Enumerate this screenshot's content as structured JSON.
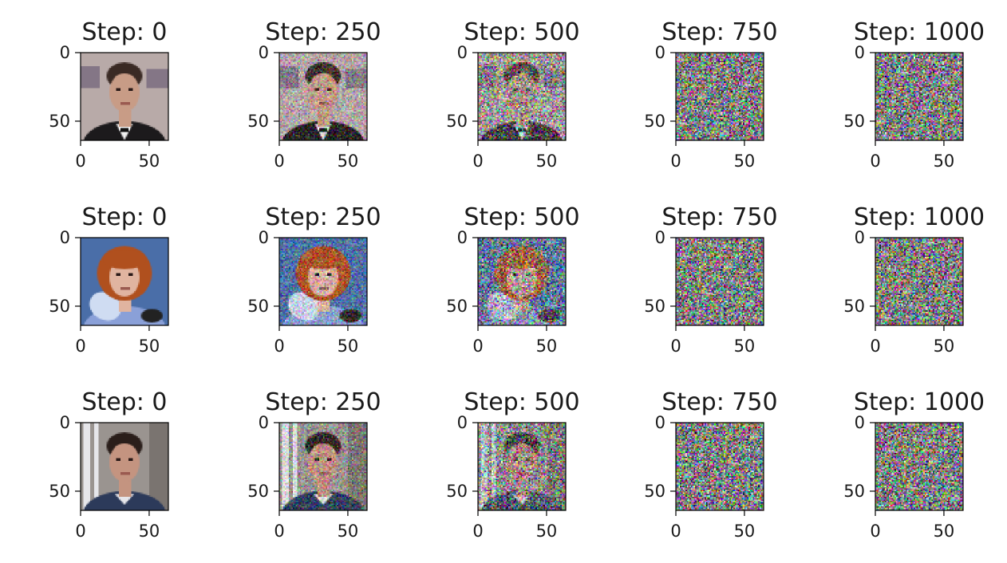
{
  "chart_data": {
    "type": "image_grid",
    "title": "",
    "rows": 3,
    "columns": 5,
    "panel_titles": [
      [
        "Step: 0",
        "Step: 250",
        "Step: 500",
        "Step: 750",
        "Step: 1000"
      ],
      [
        "Step: 0",
        "Step: 250",
        "Step: 500",
        "Step: 750",
        "Step: 1000"
      ],
      [
        "Step: 0",
        "Step: 250",
        "Step: 500",
        "Step: 750",
        "Step: 1000"
      ]
    ],
    "steps": [
      0,
      250,
      500,
      750,
      1000
    ],
    "noise_levels": [
      0.0,
      0.45,
      0.82,
      1.0,
      1.0
    ],
    "x_ticks": [
      0,
      50
    ],
    "y_ticks": [
      0,
      50
    ],
    "xlim": [
      0,
      64
    ],
    "ylim": [
      64,
      0
    ],
    "image_size": 64,
    "images": [
      {
        "subject": "man in dark suit and white shirt",
        "background": "#b8aaa8",
        "skin": "#c89c86",
        "hair": "#3a2a24",
        "clothing": "#1c1a1c",
        "accent": "#5a4a6a"
      },
      {
        "subject": "woman with auburn hair and blue scarf",
        "background": "#4a6ea8",
        "skin": "#e0b4a0",
        "hair": "#b0501e",
        "clothing": "#8aa0d8",
        "accent": "#2a2a2a"
      },
      {
        "subject": "man with dark hair and blue collar",
        "background": "#9a9490",
        "skin": "#c49480",
        "hair": "#2a1e1a",
        "clothing": "#2c3a5a",
        "accent": "#e6e6ea"
      }
    ]
  }
}
